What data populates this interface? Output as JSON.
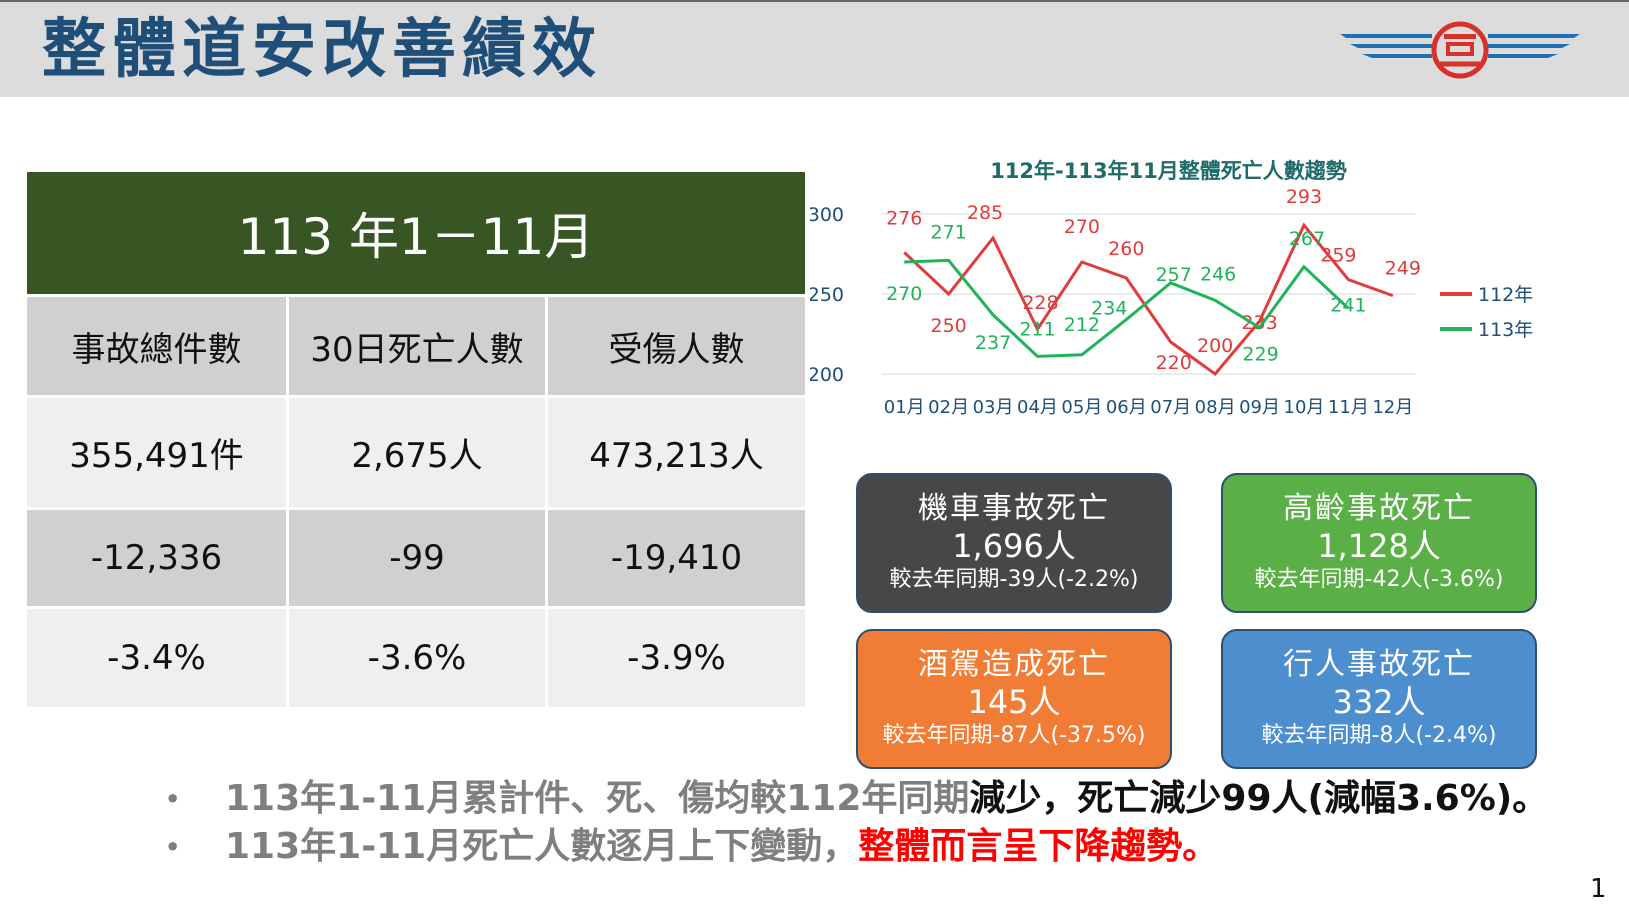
{
  "title": "整體道安改善績效",
  "table": {
    "period": "113 年1－11月",
    "headers": [
      "事故總件數",
      "30日死亡人數",
      "受傷人數"
    ],
    "rows": [
      [
        "355,491件",
        "2,675人",
        "473,213人"
      ],
      [
        "-12,336",
        "-99",
        "-19,410"
      ],
      [
        "-3.4%",
        "-3.6%",
        "-3.9%"
      ]
    ],
    "row_colors": [
      "#efefef",
      "#d0d0d0",
      "#efefef"
    ],
    "header_row_color": "#d0d0d0"
  },
  "chart_data": {
    "type": "line",
    "title": "112年-113年11月整體死亡人數趨勢",
    "categories": [
      "01月",
      "02月",
      "03月",
      "04月",
      "05月",
      "06月",
      "07月",
      "08月",
      "09月",
      "10月",
      "11月",
      "12月"
    ],
    "series": [
      {
        "name": "112年",
        "color": "#e03c3c",
        "values": [
          276,
          250,
          285,
          228,
          270,
          260,
          220,
          200,
          233,
          293,
          259,
          249
        ]
      },
      {
        "name": "113年",
        "color": "#1fb35a",
        "values": [
          270,
          271,
          237,
          211,
          212,
          234,
          257,
          246,
          229,
          267,
          241,
          null
        ]
      }
    ],
    "yticks": [
      200,
      250,
      300
    ],
    "ylim": [
      200,
      300
    ],
    "grid": true,
    "legend": "right"
  },
  "boxes": [
    {
      "title": "機車事故死亡",
      "value": "1,696人",
      "sub": "較去年同期-39人(-2.2%)",
      "color": "#474747"
    },
    {
      "title": "高齡事故死亡",
      "value": "1,128人",
      "sub": "較去年同期-42人(-3.6%)",
      "color": "#5aaf46"
    },
    {
      "title": "酒駕造成死亡",
      "value": "145人",
      "sub": "較去年同期-87人(-37.5%)",
      "color": "#f07c35"
    },
    {
      "title": "行人事故死亡",
      "value": "332人",
      "sub": "較去年同期-8人(-2.4%)",
      "color": "#4d8fce"
    }
  ],
  "bullets": [
    {
      "dot": "•",
      "grey": "113年1-11月累計件、死、傷均較112年同期",
      "emph": "減少，死亡減少99人(減幅3.6%)。"
    },
    {
      "dot": "•",
      "grey": "113年1-11月死亡人數逐月上下變動，",
      "emph": "整體而言呈下降趨勢。"
    }
  ],
  "page_number": "1"
}
